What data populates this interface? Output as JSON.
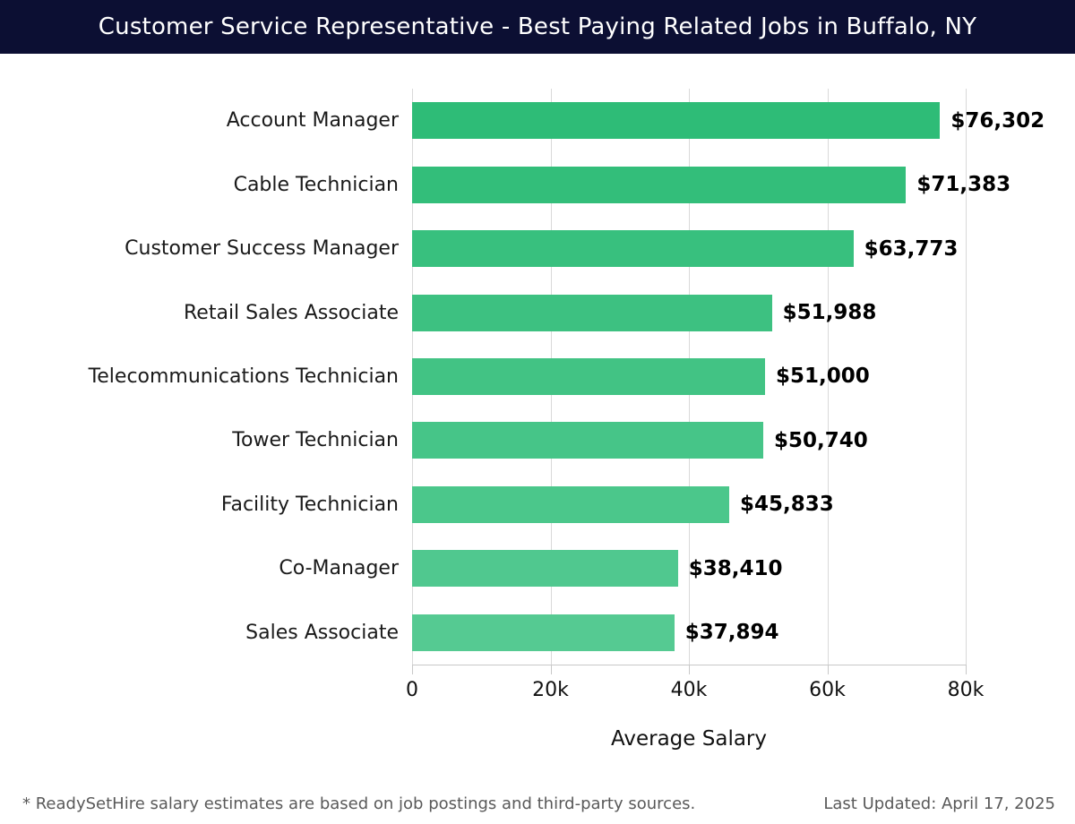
{
  "chart_data": {
    "type": "bar",
    "orientation": "horizontal",
    "title": "Customer Service Representative - Best Paying Related Jobs in Buffalo, NY",
    "categories": [
      "Account Manager",
      "Cable Technician",
      "Customer Success Manager",
      "Retail Sales Associate",
      "Telecommunications Technician",
      "Tower Technician",
      "Facility Technician",
      "Co-Manager",
      "Sales Associate"
    ],
    "values": [
      76302,
      71383,
      63773,
      51988,
      51000,
      50740,
      45833,
      38410,
      37894
    ],
    "value_labels": [
      "$76,302",
      "$71,383",
      "$63,773",
      "$51,988",
      "$51,000",
      "$50,740",
      "$45,833",
      "$38,410",
      "$37,894"
    ],
    "bar_colors": [
      "#2ebc77",
      "#33be7a",
      "#38c07e",
      "#3dc181",
      "#42c384",
      "#46c588",
      "#4bc78b",
      "#50c88f",
      "#55ca92"
    ],
    "xlabel": "Average Salary",
    "ylabel": "",
    "xlim": [
      0,
      80000
    ],
    "x_ticks": [
      0,
      20000,
      40000,
      60000,
      80000
    ],
    "x_tick_labels": [
      "0",
      "20k",
      "40k",
      "60k",
      "80k"
    ],
    "grid": "vertical",
    "legend": "none"
  },
  "header": {
    "bg_color": "#0c0f33",
    "text_color": "#ffffff"
  },
  "footer": {
    "note": "* ReadySetHire salary estimates are based on job postings and third-party sources.",
    "last_updated": "Last Updated: April 17, 2025"
  }
}
